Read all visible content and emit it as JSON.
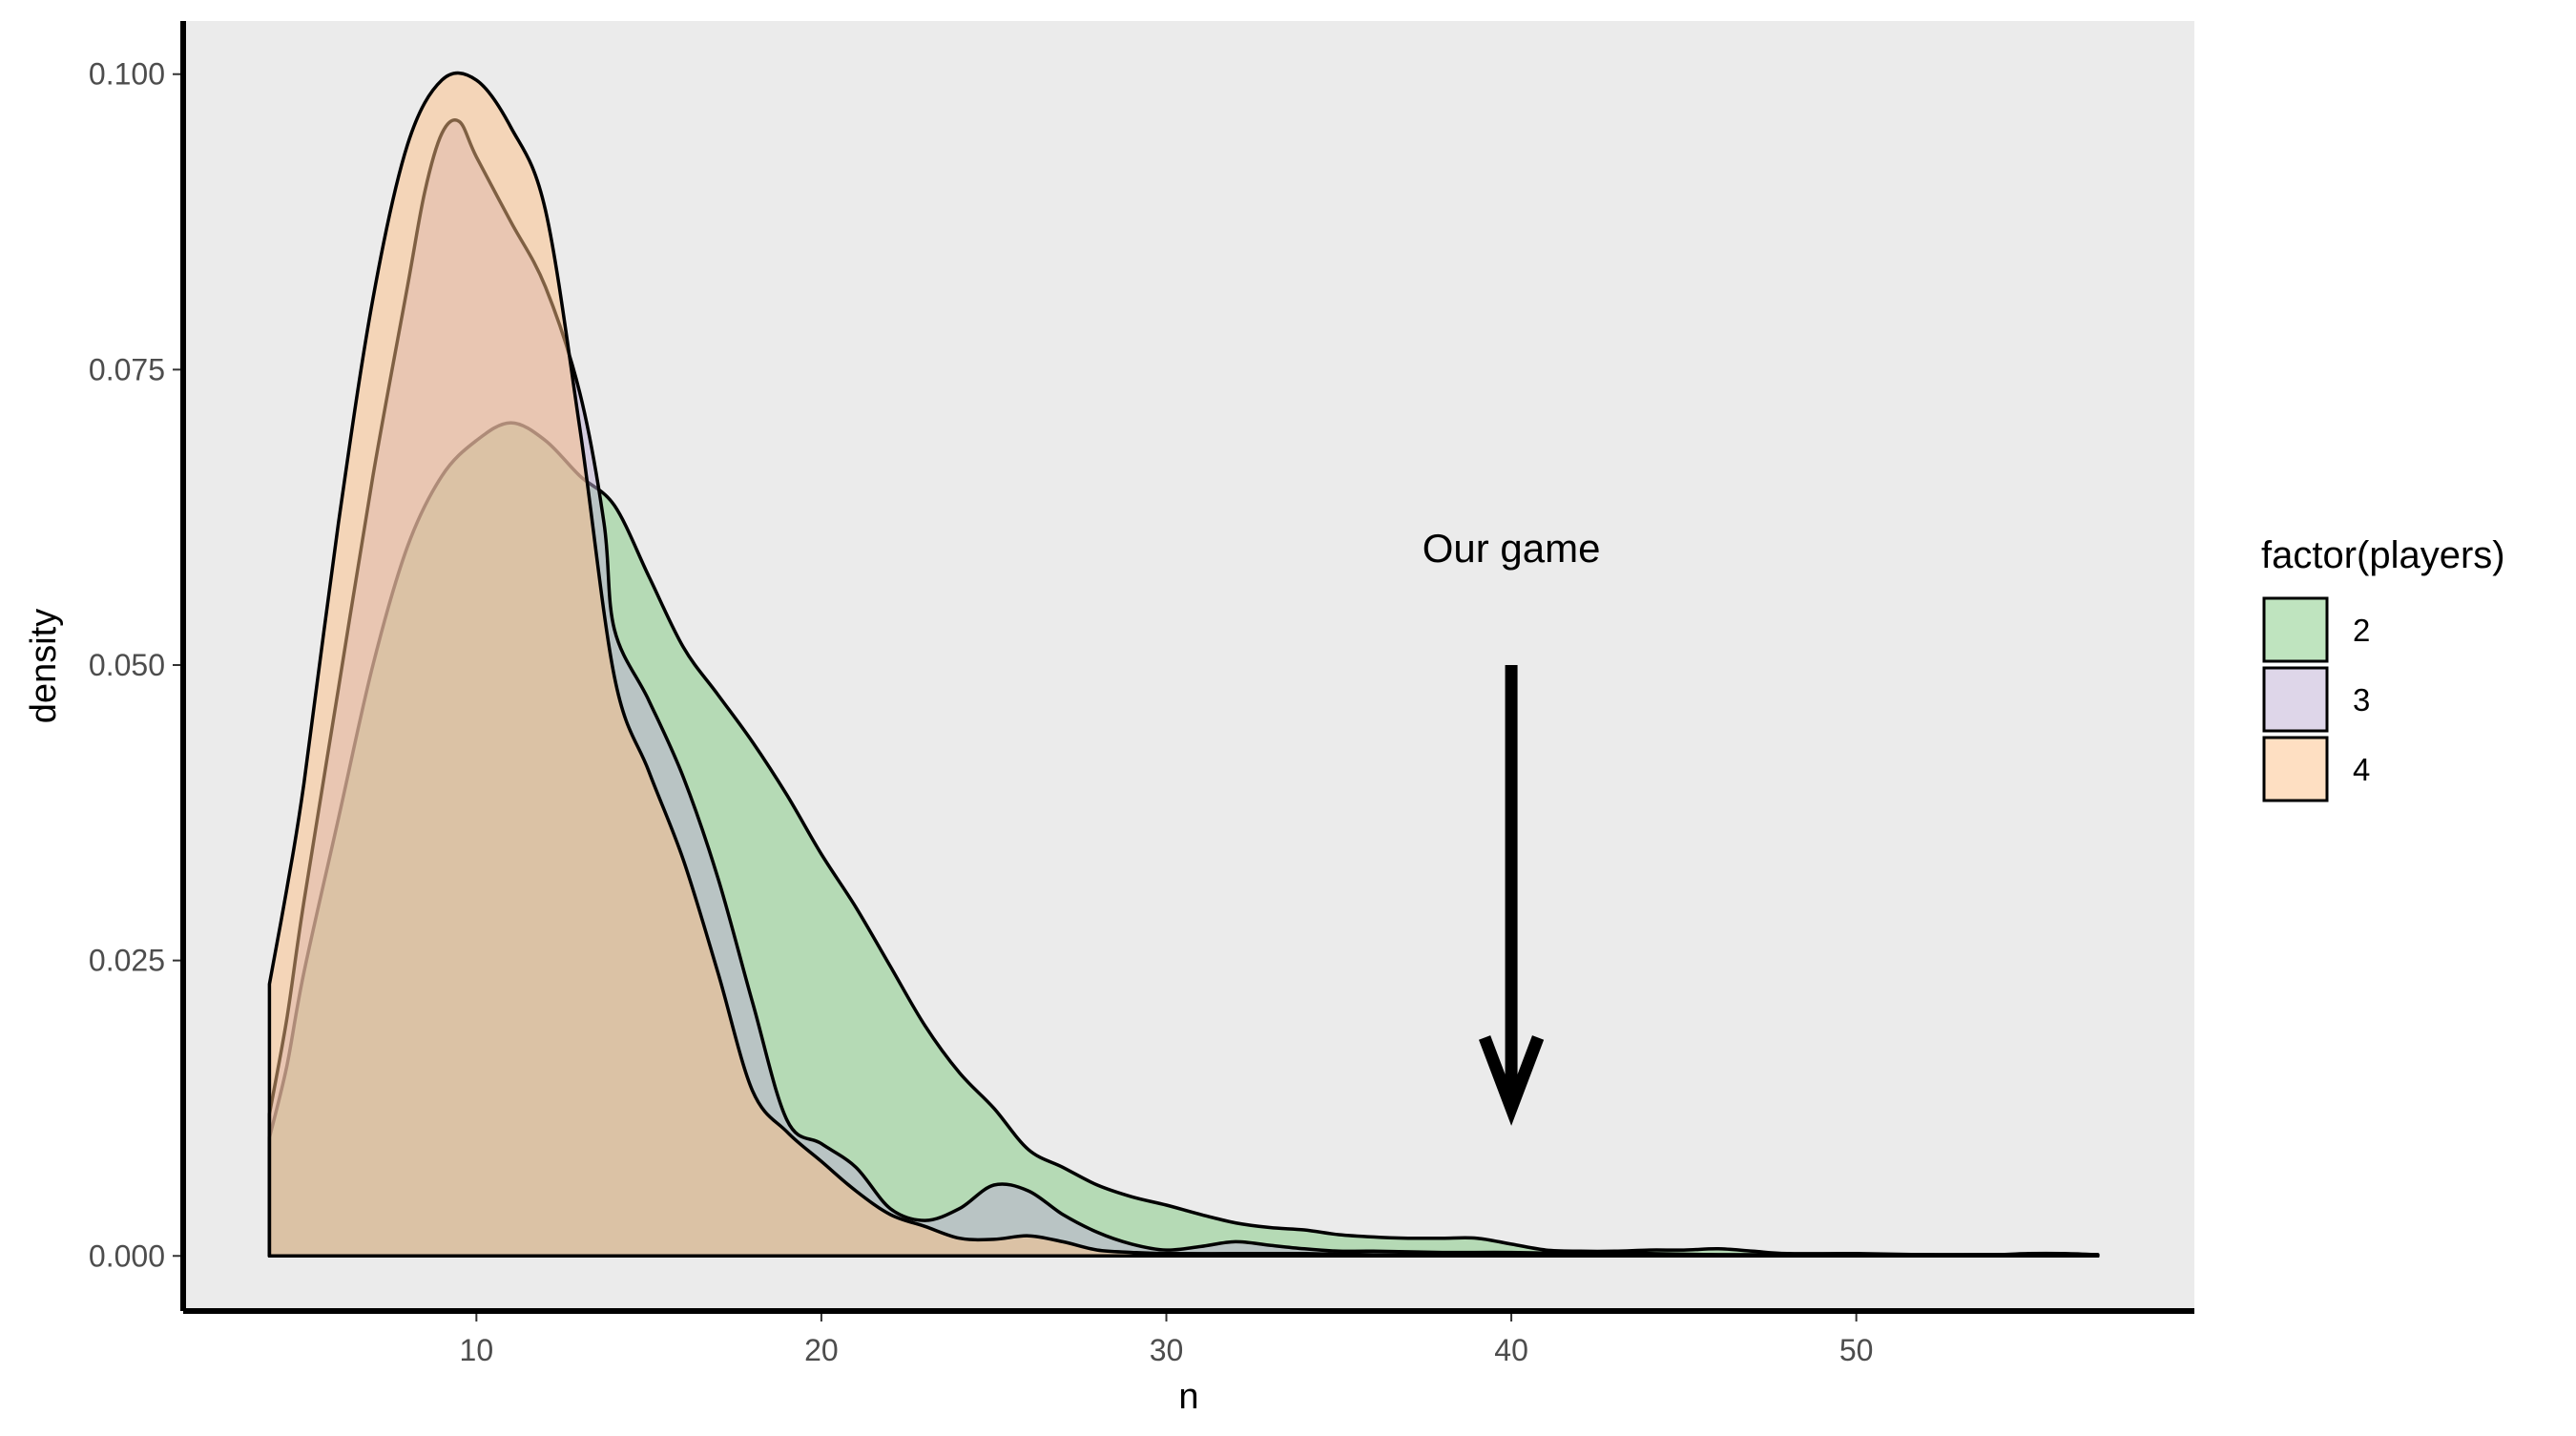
{
  "colors": {
    "panel_background": "#ebebeb",
    "axis_line": "#000000",
    "outline": "#000000",
    "series_2": "#7fc97f",
    "series_3": "#beaed4",
    "series_4": "#fdc086"
  },
  "chart_data": {
    "type": "area",
    "subtype": "density",
    "title": "",
    "xlabel": "n",
    "ylabel": "density",
    "xlim": [
      1.5,
      59.8
    ],
    "ylim": [
      -0.0045,
      0.1045
    ],
    "x_ticks": [
      10,
      20,
      30,
      40,
      50
    ],
    "x_tick_labels": [
      "10",
      "20",
      "30",
      "40",
      "50"
    ],
    "y_ticks": [
      0,
      0.025,
      0.05,
      0.075,
      0.1
    ],
    "y_tick_labels": [
      "0.000",
      "0.025",
      "0.050",
      "0.075",
      "0.100"
    ],
    "grid": false,
    "fill_alpha": 0.5,
    "legend": {
      "title": "factor(players)",
      "position": "right",
      "entries": [
        "2",
        "3",
        "4"
      ]
    },
    "annotation": {
      "text": "Our game",
      "text_at": [
        40,
        0.06
      ],
      "arrow_from": [
        40,
        0.05
      ],
      "arrow_to": [
        40,
        0.0125
      ]
    },
    "series": [
      {
        "name": "2",
        "color": "#7fc97f",
        "x": [
          4,
          4.5,
          5,
          6,
          7,
          8,
          9,
          10,
          11,
          12,
          13,
          14,
          15,
          16,
          17,
          18,
          19,
          20,
          21,
          22,
          23,
          24,
          25,
          26,
          27,
          28,
          29,
          30,
          31,
          32,
          33,
          34,
          35,
          36,
          37,
          38,
          39,
          40,
          41,
          42,
          43,
          44,
          45,
          46,
          47,
          48,
          50,
          52,
          54,
          55,
          56,
          57
        ],
        "y": [
          0.01,
          0.016,
          0.024,
          0.037,
          0.05,
          0.06,
          0.066,
          0.069,
          0.0705,
          0.069,
          0.066,
          0.0635,
          0.0575,
          0.0515,
          0.0475,
          0.0435,
          0.039,
          0.034,
          0.0295,
          0.0245,
          0.0195,
          0.0155,
          0.0125,
          0.009,
          0.0075,
          0.006,
          0.005,
          0.0043,
          0.0035,
          0.0028,
          0.0024,
          0.0022,
          0.0018,
          0.0016,
          0.0015,
          0.0015,
          0.0015,
          0.001,
          0.0005,
          0.0004,
          0.0004,
          0.0005,
          0.0005,
          0.0006,
          0.0004,
          0.0002,
          0.0002,
          0.0001,
          0.0001,
          0.0002,
          0.0002,
          0.0001
        ]
      },
      {
        "name": "3",
        "color": "#beaed4",
        "x": [
          4,
          4.5,
          5,
          6,
          7,
          8,
          8.5,
          9,
          9.5,
          10,
          11,
          12,
          13,
          13.7,
          14,
          15,
          16,
          17,
          18,
          19,
          20,
          21,
          22,
          23,
          24,
          25,
          26,
          27,
          28,
          29,
          30,
          31,
          32,
          33,
          34,
          35,
          36,
          38,
          40,
          42,
          44,
          46,
          48,
          50,
          52,
          54,
          56,
          57
        ],
        "y": [
          0.012,
          0.02,
          0.03,
          0.048,
          0.066,
          0.082,
          0.09,
          0.095,
          0.096,
          0.093,
          0.0875,
          0.082,
          0.073,
          0.062,
          0.053,
          0.047,
          0.0405,
          0.032,
          0.0215,
          0.0115,
          0.0095,
          0.0075,
          0.004,
          0.003,
          0.004,
          0.006,
          0.0055,
          0.0035,
          0.002,
          0.001,
          0.0005,
          0.0008,
          0.0012,
          0.0009,
          0.0006,
          0.0004,
          0.0004,
          0.0003,
          0.0003,
          0.0002,
          0.0002,
          0.0001,
          0.0001,
          0.0001,
          0.0001,
          0.0001,
          0.0001,
          0.0001
        ]
      },
      {
        "name": "4",
        "color": "#fdc086",
        "x": [
          4,
          4.5,
          5,
          6,
          7,
          8,
          9,
          10,
          11,
          12,
          13,
          14,
          15,
          16,
          17,
          18,
          19,
          20,
          21,
          22,
          23,
          24,
          25,
          26,
          27,
          28,
          29,
          30,
          32,
          34,
          36,
          38,
          40,
          42,
          44,
          46,
          48,
          50,
          52,
          54,
          56,
          57
        ],
        "y": [
          0.023,
          0.031,
          0.04,
          0.062,
          0.081,
          0.094,
          0.0995,
          0.0995,
          0.0955,
          0.0885,
          0.07,
          0.049,
          0.041,
          0.0335,
          0.024,
          0.014,
          0.0105,
          0.008,
          0.0055,
          0.0035,
          0.0025,
          0.0015,
          0.0014,
          0.0017,
          0.0012,
          0.0005,
          0.0003,
          0.0002,
          0.0002,
          0.0002,
          0.0001,
          0.0001,
          0.0001,
          0.0001,
          0.0001,
          0.0001,
          0.0001,
          0.0001,
          0.0001,
          0.0001,
          0.0001,
          0.0001
        ]
      }
    ]
  }
}
